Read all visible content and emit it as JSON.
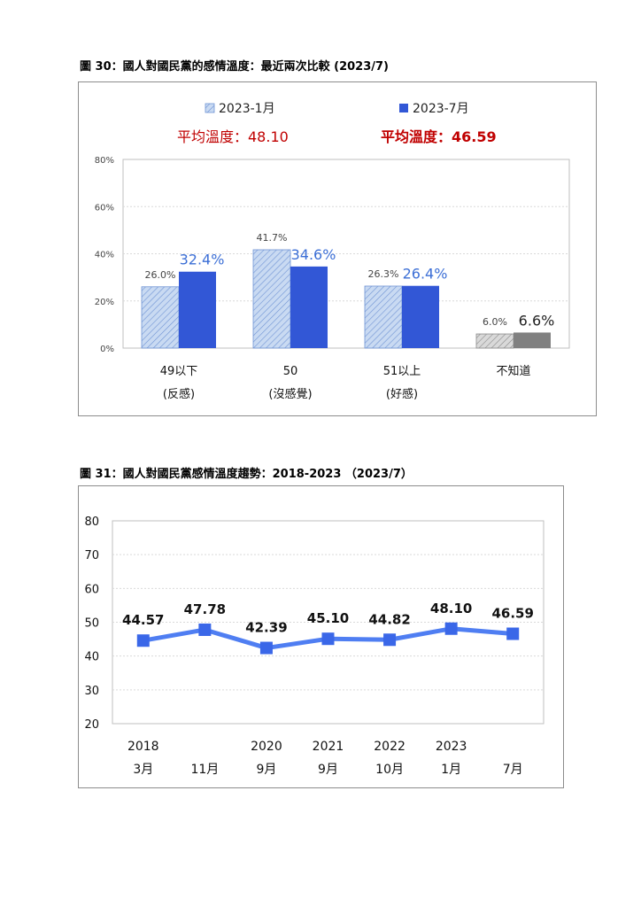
{
  "chart1": {
    "caption": "圖 30：國人對國民黨的感情溫度：最近兩次比較 (2023/7)",
    "legend": [
      {
        "name": "2023-1月",
        "avg_label": "平均溫度：48.10"
      },
      {
        "name": "2023-7月",
        "avg_label": "平均溫度：46.59"
      }
    ],
    "colors": {
      "accent": "#3257d6",
      "light_fill": "#c9daf2",
      "light_stroke": "#6f93d4",
      "gray": "#808080",
      "gray_light": "#d9d9d9",
      "avg_text": "#c00000",
      "label_blue": "#3c6fd6"
    }
  },
  "chart2": {
    "caption": "圖 31：國人對國民黨感情溫度趨勢：2018-2023 （2023/7）",
    "colors": {
      "line": "#4f7ef2",
      "marker": "#3a67e8"
    }
  },
  "chart_data": [
    {
      "type": "bar",
      "title": "",
      "categories": [
        {
          "line1": "49以下",
          "line2": "(反感)"
        },
        {
          "line1": "50",
          "line2": "(沒感覺)"
        },
        {
          "line1": "51以上",
          "line2": "(好感)"
        },
        {
          "line1": "不知道",
          "line2": ""
        }
      ],
      "series": [
        {
          "name": "2023-1月",
          "values": [
            26.0,
            41.7,
            26.3,
            6.0
          ],
          "labels": [
            "26.0%",
            "41.7%",
            "26.3%",
            "6.0%"
          ]
        },
        {
          "name": "2023-7月",
          "values": [
            32.4,
            34.6,
            26.4,
            6.6
          ],
          "labels": [
            "32.4%",
            "34.6%",
            "26.4%",
            "6.6%"
          ]
        }
      ],
      "ylim": [
        0,
        80
      ],
      "yticks": [
        "0%",
        "20%",
        "40%",
        "60%",
        "80%"
      ],
      "grid": true,
      "legend_position": "top"
    },
    {
      "type": "line",
      "title": "",
      "x": [
        {
          "line1": "2018",
          "line2": "3月"
        },
        {
          "line1": "",
          "line2": "11月"
        },
        {
          "line1": "2020",
          "line2": "9月"
        },
        {
          "line1": "2021",
          "line2": "9月"
        },
        {
          "line1": "2022",
          "line2": "10月"
        },
        {
          "line1": "2023",
          "line2": "1月"
        },
        {
          "line1": "",
          "line2": "7月"
        }
      ],
      "values": [
        44.57,
        47.78,
        42.39,
        45.1,
        44.82,
        48.1,
        46.59
      ],
      "labels": [
        "44.57",
        "47.78",
        "42.39",
        "45.10",
        "44.82",
        "48.10",
        "46.59"
      ],
      "ylim": [
        20,
        80
      ],
      "yticks": [
        "20",
        "30",
        "40",
        "50",
        "60",
        "70",
        "80"
      ],
      "grid": true
    }
  ]
}
